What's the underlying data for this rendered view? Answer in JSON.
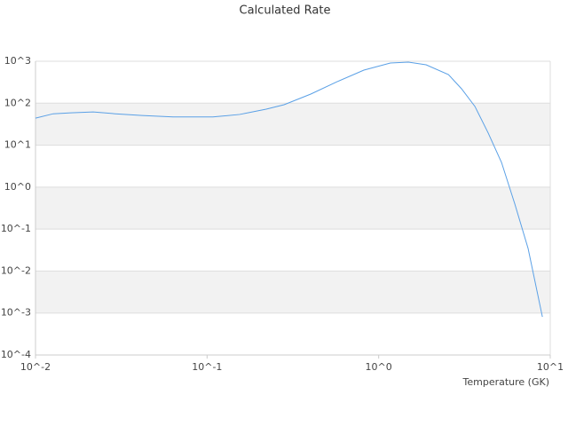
{
  "chart_data": {
    "type": "line",
    "title": "Calculated Rate",
    "x_label": "Temperature (GK)",
    "xscale": "log",
    "yscale": "log",
    "grid": true,
    "color": "#5aa0e6",
    "x": [
      0.01,
      0.01268,
      0.0161,
      0.0217,
      0.0292,
      0.0418,
      0.0634,
      0.108,
      0.155,
      0.221,
      0.281,
      0.402,
      0.574,
      0.82,
      1.17,
      1.49,
      1.89,
      2.55,
      3.04,
      3.64,
      4.35,
      5.2,
      6.22,
      7.43,
      9.0
    ],
    "values": [
      44,
      56,
      59,
      62,
      56,
      51,
      47,
      47,
      54,
      72,
      92,
      165,
      327,
      615,
      907,
      950,
      823,
      482,
      221,
      83.6,
      19.4,
      3.88,
      0.394,
      0.0345,
      0.00081
    ],
    "xlim": [
      0.01,
      10
    ],
    "ylim": [
      0.0001,
      1000
    ],
    "xticks": [
      {
        "value": 0.01,
        "label": "10^-2"
      },
      {
        "value": 0.1,
        "label": "10^-1"
      },
      {
        "value": 1,
        "label": "10^0"
      },
      {
        "value": 10,
        "label": "10^1"
      }
    ],
    "yticks": [
      {
        "value": 0.0001,
        "label": "10^-4"
      },
      {
        "value": 0.001,
        "label": "10^-3"
      },
      {
        "value": 0.01,
        "label": "10^-2"
      },
      {
        "value": 0.1,
        "label": "10^-1"
      },
      {
        "value": 1,
        "label": "10^0"
      },
      {
        "value": 10,
        "label": "10^1"
      },
      {
        "value": 100,
        "label": "10^2"
      },
      {
        "value": 1000,
        "label": "10^3"
      }
    ]
  }
}
